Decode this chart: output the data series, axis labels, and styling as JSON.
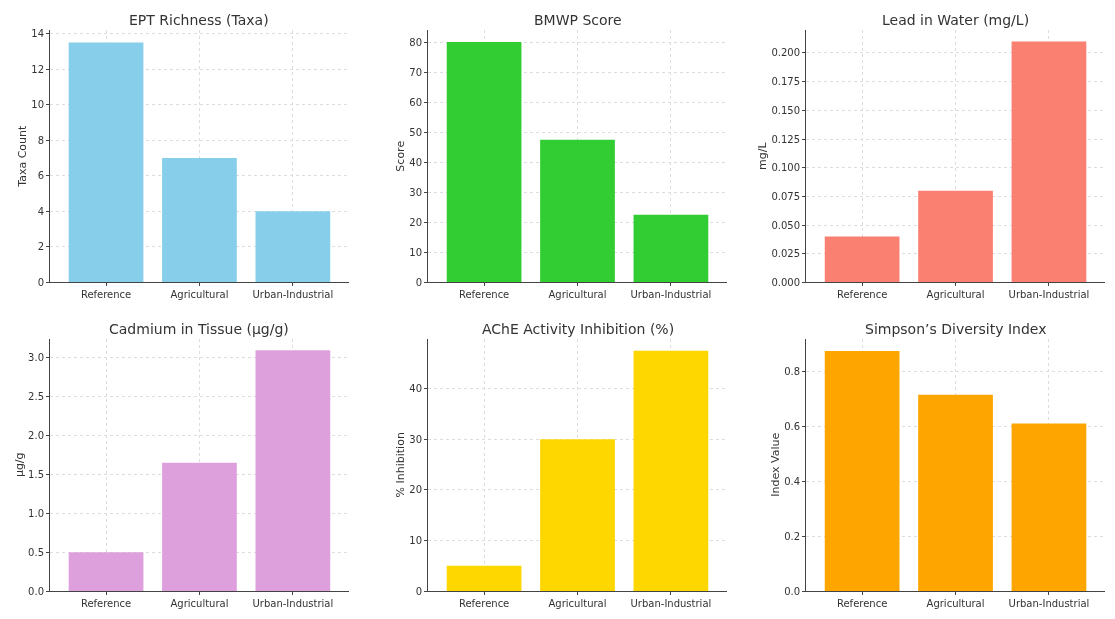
{
  "chart_data": [
    {
      "type": "bar",
      "title": "EPT Richness (Taxa)",
      "ylabel": "Taxa Count",
      "categories": [
        "Reference",
        "Agricultural",
        "Urban-Industrial"
      ],
      "values": [
        13.5,
        7,
        4
      ],
      "color": "#87ceeb",
      "ylim": [
        0,
        14.2
      ],
      "yticks": [
        0,
        2,
        4,
        6,
        8,
        10,
        12,
        14
      ],
      "grid": true
    },
    {
      "type": "bar",
      "title": "BMWP Score",
      "ylabel": "Score",
      "categories": [
        "Reference",
        "Agricultural",
        "Urban-Industrial"
      ],
      "values": [
        80,
        47.5,
        22.5
      ],
      "color": "#32cd32",
      "ylim": [
        0,
        84
      ],
      "yticks": [
        0,
        10,
        20,
        30,
        40,
        50,
        60,
        70,
        80
      ],
      "grid": true
    },
    {
      "type": "bar",
      "title": "Lead in Water (mg/L)",
      "ylabel": "mg/L",
      "categories": [
        "Reference",
        "Agricultural",
        "Urban-Industrial"
      ],
      "values": [
        0.04,
        0.08,
        0.21
      ],
      "color": "#fa8072",
      "ylim": [
        0,
        0.22
      ],
      "yticks": [
        {
          "value": 0,
          "label": "0.000"
        },
        {
          "value": 0.025,
          "label": "0.025"
        },
        {
          "value": 0.05,
          "label": "0.050"
        },
        {
          "value": 0.075,
          "label": "0.075"
        },
        {
          "value": 0.1,
          "label": "0.100"
        },
        {
          "value": 0.125,
          "label": "0.125"
        },
        {
          "value": 0.15,
          "label": "0.150"
        },
        {
          "value": 0.175,
          "label": "0.175"
        },
        {
          "value": 0.2,
          "label": "0.200"
        }
      ],
      "grid": true
    },
    {
      "type": "bar",
      "title": "Cadmium in Tissue (µg/g)",
      "ylabel": "µg/g",
      "categories": [
        "Reference",
        "Agricultural",
        "Urban-Industrial"
      ],
      "values": [
        0.5,
        1.65,
        3.1
      ],
      "color": "#dda0dd",
      "ylim": [
        0,
        3.25
      ],
      "yticks": [
        {
          "value": 0,
          "label": "0.0"
        },
        0.5,
        {
          "value": 1,
          "label": "1.0"
        },
        1.5,
        {
          "value": 2,
          "label": "2.0"
        },
        2.5,
        {
          "value": 3,
          "label": "3.0"
        }
      ],
      "grid": true
    },
    {
      "type": "bar",
      "title": "AChE Activity Inhibition (%)",
      "ylabel": "% Inhibition",
      "categories": [
        "Reference",
        "Agricultural",
        "Urban-Industrial"
      ],
      "values": [
        5,
        30,
        47.5
      ],
      "color": "#ffd700",
      "ylim": [
        0,
        49.9
      ],
      "yticks": [
        0,
        10,
        20,
        30,
        40
      ],
      "grid": true
    },
    {
      "type": "bar",
      "title": "Simpson’s Diversity Index",
      "ylabel": "Index Value",
      "categories": [
        "Reference",
        "Agricultural",
        "Urban-Industrial"
      ],
      "values": [
        0.875,
        0.715,
        0.61
      ],
      "color": "#ffa500",
      "ylim": [
        0,
        0.92
      ],
      "yticks": [
        {
          "value": 0,
          "label": "0.0"
        },
        0.2,
        0.4,
        0.6,
        0.8
      ],
      "grid": true
    }
  ]
}
